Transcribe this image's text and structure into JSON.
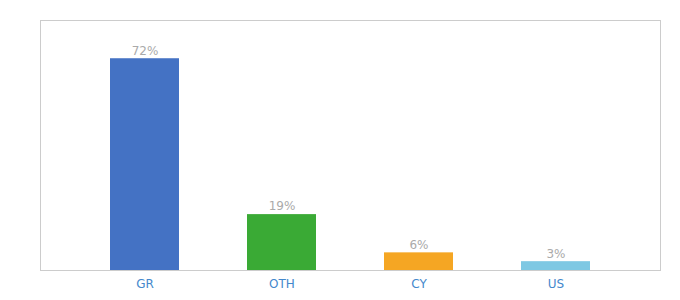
{
  "chart_data": {
    "type": "bar",
    "categories": [
      "GR",
      "OTH",
      "CY",
      "US"
    ],
    "values": [
      72,
      19,
      6,
      3
    ],
    "value_labels": [
      "72%",
      "19%",
      "6%",
      "3%"
    ],
    "colors": [
      "#4472c4",
      "#3aaa35",
      "#f5a623",
      "#7ec8e3"
    ],
    "ylim": [
      0,
      85
    ],
    "grid": false,
    "data_labels": true,
    "tick_labels": "x"
  }
}
